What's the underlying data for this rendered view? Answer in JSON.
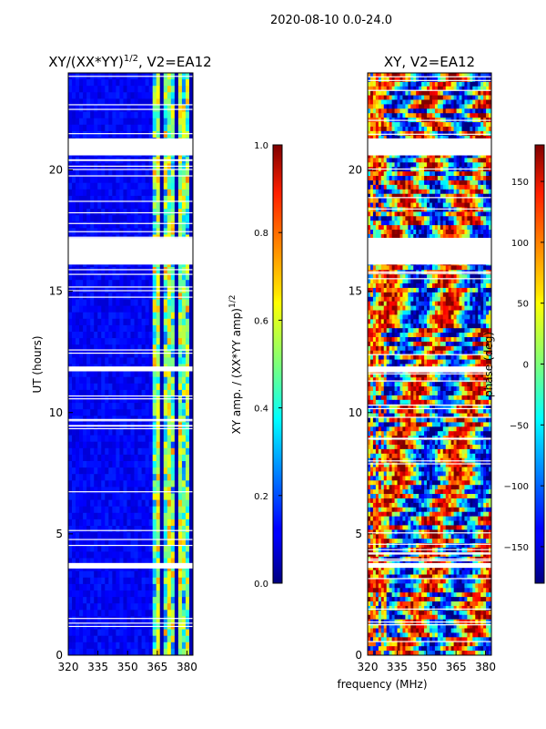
{
  "suptitle": "2020-08-10 0.0-24.0",
  "xlabel_shared": "frequency (MHz)",
  "colors": {
    "background": "#ffffff",
    "gap": "#ffffff",
    "axis": "#000000"
  },
  "chart_data": [
    {
      "type": "heatmap",
      "title_main": "XY/(XX*YY)",
      "title_sup": "1/2",
      "title_suffix": ", V2=EA12",
      "xlabel": "",
      "ylabel": "UT (hours)",
      "xlim": [
        320,
        383
      ],
      "ylim": [
        0,
        24
      ],
      "xticks": [
        "320",
        "335",
        "350",
        "365",
        "380"
      ],
      "xtick_values": [
        320,
        335,
        350,
        365,
        380
      ],
      "yticks": [
        "0",
        "5",
        "10",
        "15",
        "20"
      ],
      "ytick_values": [
        0,
        5,
        10,
        15,
        20
      ],
      "colormap": "jet",
      "gaps_hours": [
        [
          16.1,
          17.2
        ],
        [
          20.6,
          21.3
        ],
        [
          11.7,
          11.9
        ],
        [
          3.6,
          3.8
        ]
      ],
      "colorbar": {
        "label": "XY amp. / (XX*YY amp)",
        "label_sup": "1/2",
        "range": [
          0.0,
          1.0
        ],
        "ticks": [
          "0.0",
          "0.2",
          "0.4",
          "0.6",
          "0.8",
          "1.0"
        ],
        "tick_values": [
          0.0,
          0.2,
          0.4,
          0.6,
          0.8,
          1.0
        ]
      }
    },
    {
      "type": "heatmap",
      "title_main": "XY, V2=EA12",
      "xlabel": "frequency (MHz)",
      "ylabel": "",
      "xlim": [
        320,
        383
      ],
      "ylim": [
        0,
        24
      ],
      "xticks": [
        "320",
        "335",
        "350",
        "365",
        "380"
      ],
      "xtick_values": [
        320,
        335,
        350,
        365,
        380
      ],
      "yticks": [
        "0",
        "5",
        "10",
        "15",
        "20"
      ],
      "ytick_values": [
        0,
        5,
        10,
        15,
        20
      ],
      "colormap": "jet",
      "gaps_hours": [
        [
          16.1,
          17.2
        ],
        [
          20.6,
          21.3
        ],
        [
          11.7,
          11.9
        ],
        [
          3.6,
          3.8
        ]
      ],
      "colorbar": {
        "label": "phase (deg)",
        "range": [
          -180,
          180
        ],
        "ticks": [
          "−150",
          "−100",
          "−50",
          "0",
          "50",
          "100",
          "150"
        ],
        "tick_values": [
          -150,
          -100,
          -50,
          0,
          50,
          100,
          150
        ]
      }
    }
  ]
}
